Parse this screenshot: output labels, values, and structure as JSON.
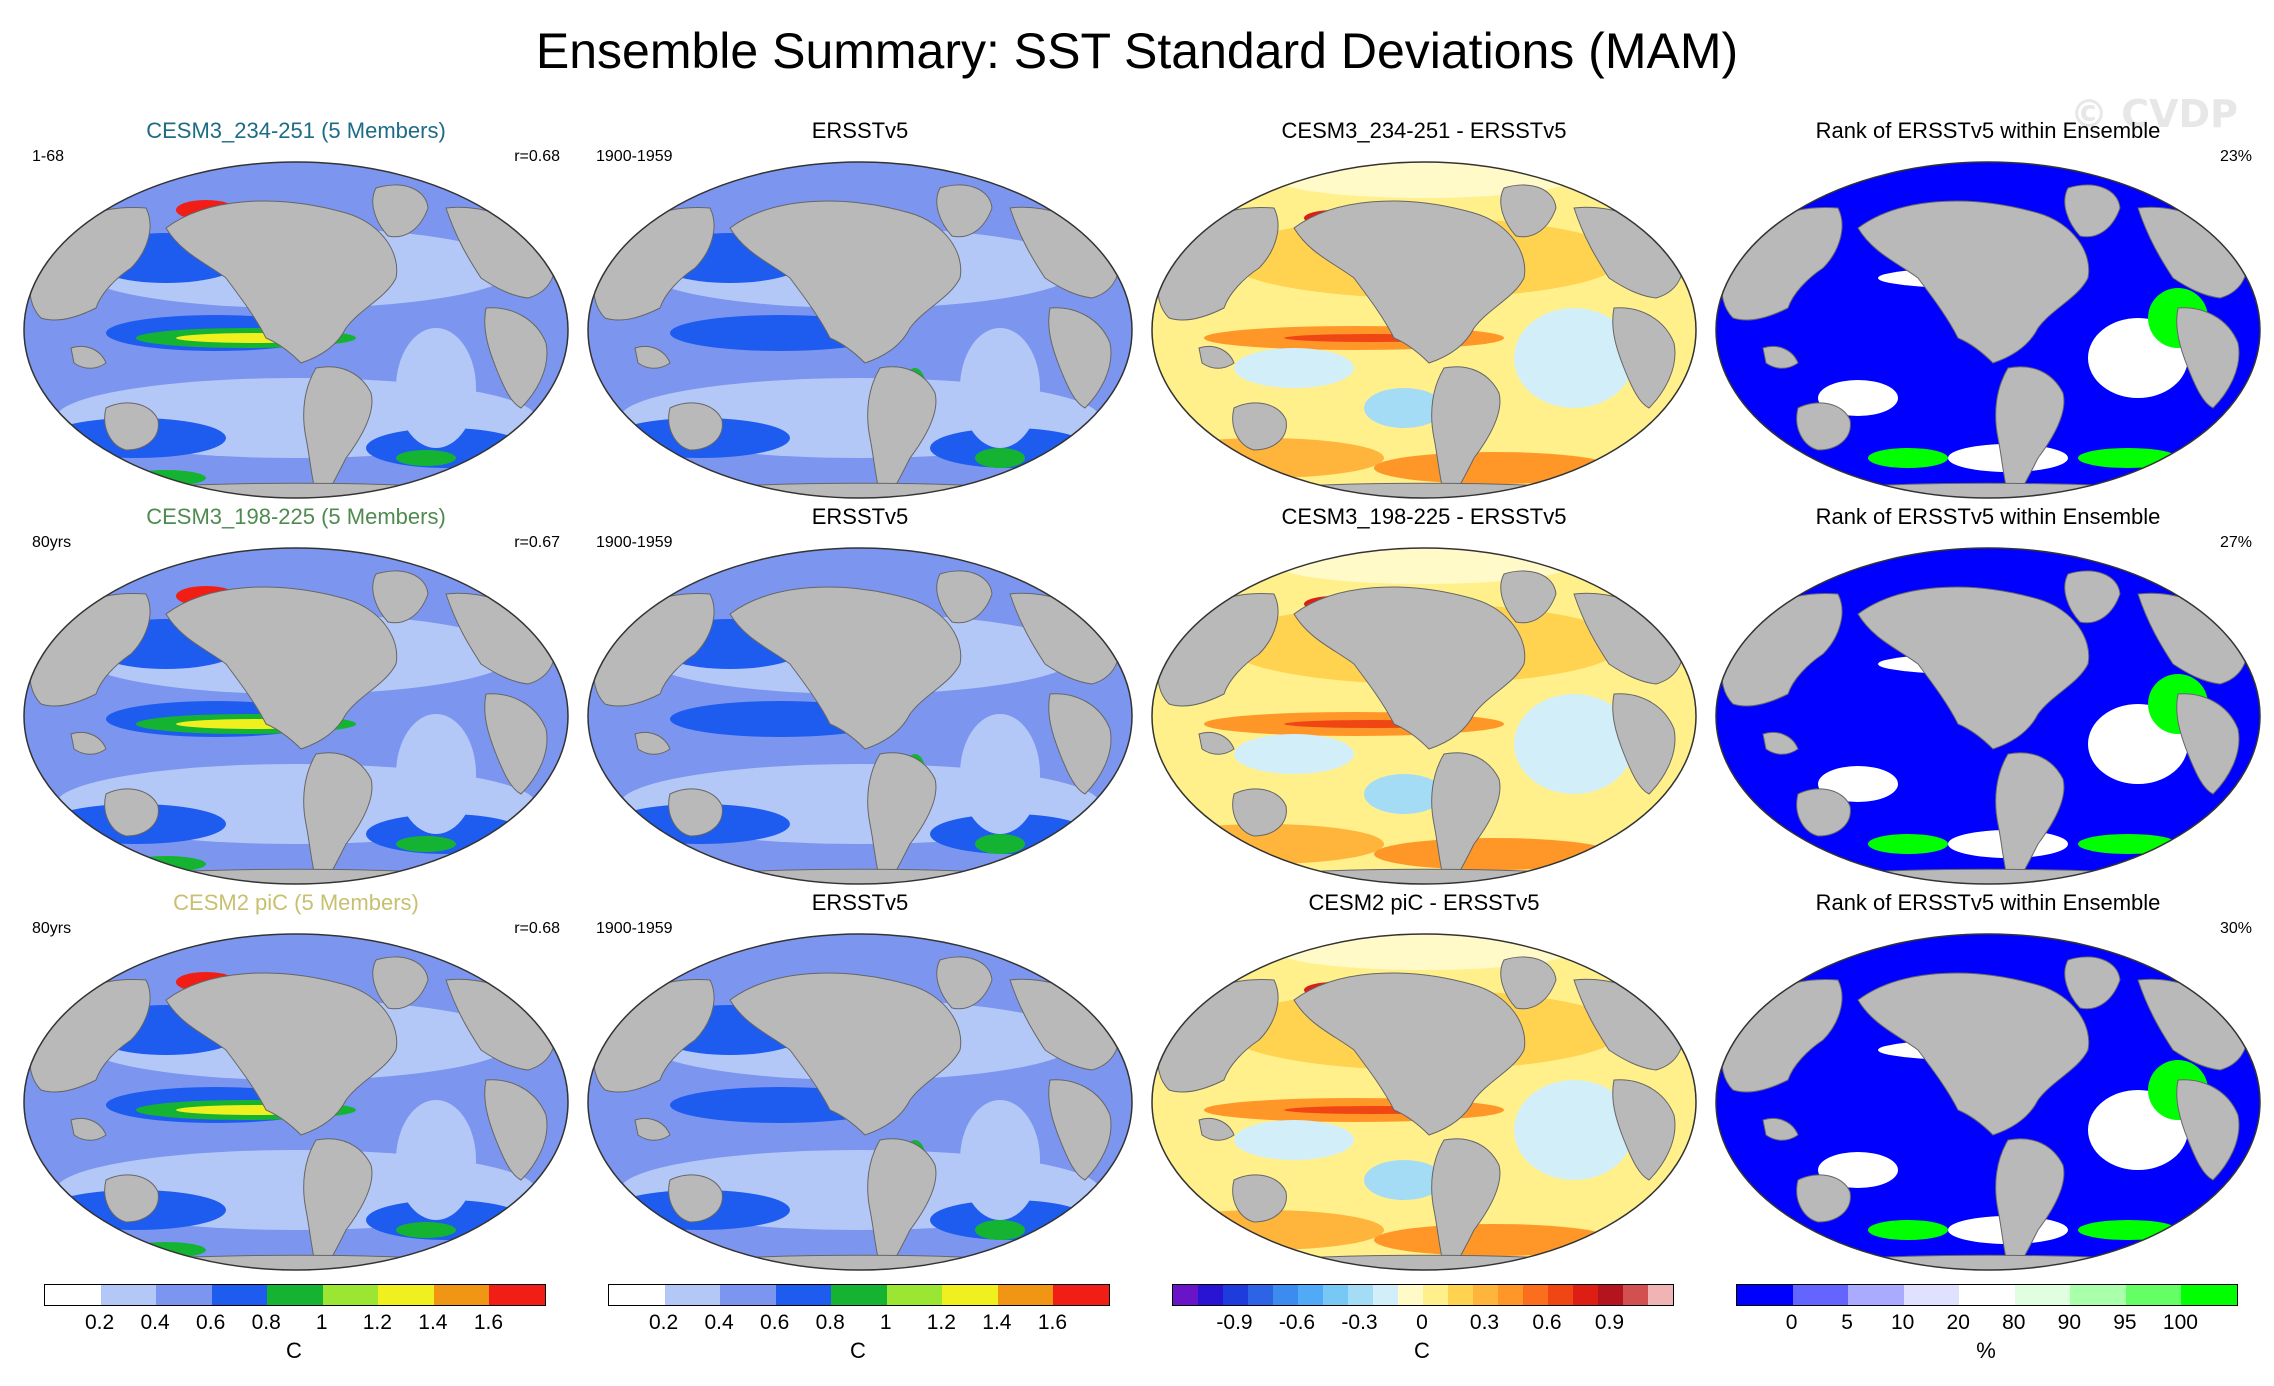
{
  "title": "Ensemble Summary: SST Standard Deviations (MAM)",
  "watermark": "© CVDP",
  "colors": {
    "land": "#b9b9b9",
    "row1_title": "#1e6b86",
    "row2_title": "#4f8a4f",
    "row3_title": "#c8c070"
  },
  "rows": [
    {
      "model": {
        "title": "CESM3_234-251 (5 Members)",
        "left": "1-68",
        "right": "r=0.68"
      },
      "obs": {
        "title": "ERSSTv5",
        "left": "1900-1959"
      },
      "diff": {
        "title": "CESM3_234-251 - ERSSTv5"
      },
      "rank": {
        "title": "Rank of ERSSTv5 within Ensemble",
        "right": "23%"
      }
    },
    {
      "model": {
        "title": "CESM3_198-225 (5 Members)",
        "left": "80yrs",
        "right": "r=0.67"
      },
      "obs": {
        "title": "ERSSTv5",
        "left": "1900-1959"
      },
      "diff": {
        "title": "CESM3_198-225 - ERSSTv5"
      },
      "rank": {
        "title": "Rank of ERSSTv5 within Ensemble",
        "right": "27%"
      }
    },
    {
      "model": {
        "title": "CESM2 piC (5 Members)",
        "left": "80yrs",
        "right": "r=0.68"
      },
      "obs": {
        "title": "ERSSTv5",
        "left": "1900-1959"
      },
      "diff": {
        "title": "CESM2 piC - ERSSTv5"
      },
      "rank": {
        "title": "Rank of ERSSTv5 within Ensemble",
        "right": "30%"
      }
    }
  ],
  "colorbars": {
    "sd1": {
      "colors": [
        "#ffffff",
        "#b4c8f8",
        "#7c96f0",
        "#1e5cf0",
        "#14b432",
        "#9ae632",
        "#f0f01e",
        "#f09614",
        "#f01e14"
      ],
      "labels": [
        "0.2",
        "0.4",
        "0.6",
        "0.8",
        "1",
        "1.2",
        "1.4",
        "1.6"
      ],
      "unit": "C"
    },
    "sd2": {
      "colors": [
        "#ffffff",
        "#b4c8f8",
        "#7c96f0",
        "#1e5cf0",
        "#14b432",
        "#9ae632",
        "#f0f01e",
        "#f09614",
        "#f01e14"
      ],
      "labels": [
        "0.2",
        "0.4",
        "0.6",
        "0.8",
        "1",
        "1.2",
        "1.4",
        "1.6"
      ],
      "unit": "C"
    },
    "diff": {
      "colors": [
        "#6a14c8",
        "#2814d2",
        "#1e3cdc",
        "#2d64e6",
        "#3c8cf0",
        "#50aaf5",
        "#78c8f5",
        "#a5dcf5",
        "#d2eef8",
        "#fffac8",
        "#fff08c",
        "#ffd250",
        "#ffb43c",
        "#ff9628",
        "#fa6e1e",
        "#f04614",
        "#dc1e14",
        "#b4141e",
        "#d25050",
        "#f0b4b4"
      ],
      "labels": [
        "-0.9",
        "-0.6",
        "-0.3",
        "0",
        "0.3",
        "0.6",
        "0.9"
      ],
      "unit": "C"
    },
    "rank": {
      "colors": [
        "#0000ff",
        "#6464ff",
        "#aaaaff",
        "#e0e0ff",
        "#ffffff",
        "#e0ffe0",
        "#aaffaa",
        "#64ff64",
        "#00ff00"
      ],
      "labels": [
        "0",
        "5",
        "10",
        "20",
        "80",
        "90",
        "95",
        "100"
      ],
      "unit": "%"
    }
  }
}
